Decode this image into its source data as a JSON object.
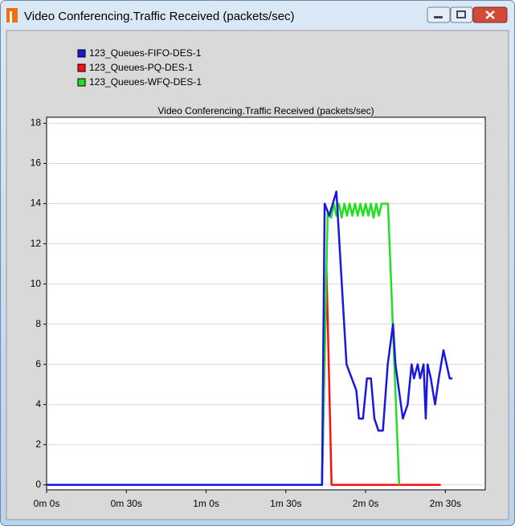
{
  "window": {
    "title": "Video Conferencing.Traffic Received (packets/sec)"
  },
  "chart_data": {
    "type": "line",
    "title": "Video Conferencing.Traffic Received (packets/sec)",
    "xlim": [
      0,
      165
    ],
    "xticks": [
      {
        "value": 0,
        "label": "0m 0s"
      },
      {
        "value": 30,
        "label": "0m 30s"
      },
      {
        "value": 60,
        "label": "1m 0s"
      },
      {
        "value": 90,
        "label": "1m 30s"
      },
      {
        "value": 120,
        "label": "2m 0s"
      },
      {
        "value": 150,
        "label": "2m 30s"
      }
    ],
    "ylim": [
      -0.25,
      18.3
    ],
    "yticks": [
      0,
      2,
      4,
      6,
      8,
      10,
      12,
      14,
      16,
      18
    ],
    "grid": true,
    "series": [
      {
        "name": "123_Queues-PQ-DES-1",
        "color": "#ff1010",
        "x": [
          0,
          103.6,
          105.3,
          107.2,
          148.3
        ],
        "values": [
          0,
          0,
          10.7,
          0,
          0
        ]
      },
      {
        "name": "123_Queues-WFQ-DES-1",
        "color": "#20e020",
        "x": [
          0,
          103.6,
          105.7,
          107,
          108,
          109,
          110,
          111,
          112,
          113,
          114,
          115,
          116,
          117,
          118,
          119,
          120,
          121,
          122,
          123,
          124,
          125,
          126,
          127,
          128.4,
          132.6
        ],
        "values": [
          0,
          0,
          13.5,
          13.3,
          14,
          13.4,
          14,
          13.3,
          14,
          13.4,
          14,
          13.4,
          14,
          13.4,
          14,
          13.4,
          14,
          13.4,
          14,
          13.3,
          14,
          13.4,
          14,
          14,
          14,
          0
        ]
      },
      {
        "name": "123_Queues-FIFO-DES-1",
        "color": "#1818e0",
        "x": [
          0,
          103.6,
          104.6,
          106.3,
          109,
          112.8,
          116.5,
          117.5,
          119,
          120.5,
          122,
          123.3,
          124.8,
          126.5,
          128.3,
          130.3,
          131.2,
          134,
          135.8,
          137.3,
          138.2,
          139.6,
          140.5,
          141.8,
          142.6,
          143.3,
          144.5,
          146.1,
          147.5,
          149.3,
          151.6,
          152.6
        ],
        "values": [
          0,
          0,
          14,
          13.4,
          14.6,
          6,
          4.7,
          3.3,
          3.3,
          5.3,
          5.3,
          3.3,
          2.7,
          2.7,
          6,
          8,
          6,
          3.3,
          4,
          6,
          5.3,
          6,
          5.3,
          6,
          3.3,
          6,
          5.3,
          4,
          5.3,
          6.7,
          5.3,
          5.3
        ]
      }
    ],
    "legend": [
      "123_Queues-FIFO-DES-1",
      "123_Queues-PQ-DES-1",
      "123_Queues-WFQ-DES-1"
    ]
  }
}
